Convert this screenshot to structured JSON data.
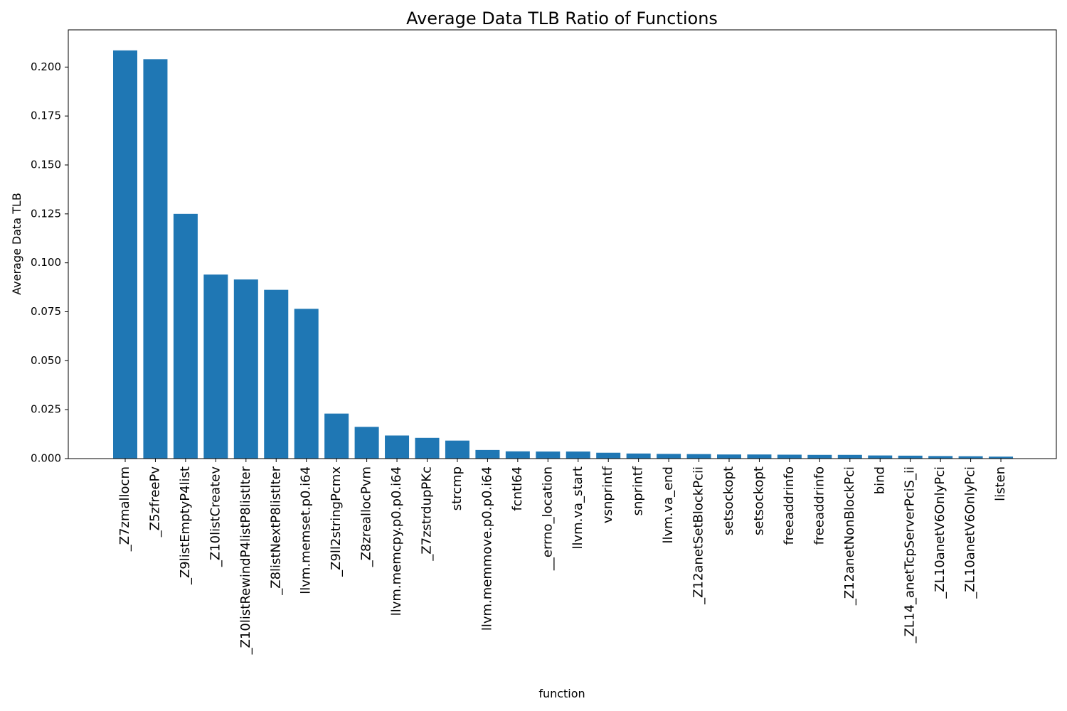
{
  "chart_data": {
    "type": "bar",
    "title": "Average Data TLB Ratio of Functions",
    "xlabel": "function",
    "ylabel": "Average Data TLB",
    "ylim": [
      0,
      0.219
    ],
    "yticks": [
      0.0,
      0.025,
      0.05,
      0.075,
      0.1,
      0.125,
      0.15,
      0.175,
      0.2
    ],
    "ytick_labels": [
      "0.000",
      "0.025",
      "0.050",
      "0.075",
      "0.100",
      "0.125",
      "0.150",
      "0.175",
      "0.200"
    ],
    "grid": false,
    "bar_color": "#1f77b4",
    "categories": [
      "_Z7zmallocm",
      "_Z5zfreePv",
      "_Z9listEmptyP4list",
      "_Z10listCreatev",
      "_Z10listRewindP4listP8listIter",
      "_Z8listNextP8listIter",
      "llvm.memset.p0.i64",
      "_Z9ll2stringPcmx",
      "_Z8zreallocPvm",
      "llvm.memcpy.p0.p0.i64",
      "_Z7zstrdupPKc",
      "strcmp",
      "llvm.memmove.p0.p0.i64",
      "fcntl64",
      "__errno_location",
      "llvm.va_start",
      "vsnprintf",
      "snprintf",
      "llvm.va_end",
      "_Z12anetSetBlockPcii",
      "setsockopt",
      "setsockopt",
      "freeaddrinfo",
      "freeaddrinfo",
      "_Z12anetNonBlockPci",
      "bind",
      "_ZL14_anetTcpServerPciS_ii",
      "_ZL10anetV6OnlyPci",
      "_ZL10anetV6OnlyPci",
      "listen"
    ],
    "values": [
      0.2085,
      0.204,
      0.125,
      0.094,
      0.0915,
      0.0862,
      0.0765,
      0.023,
      0.0162,
      0.0118,
      0.0106,
      0.0092,
      0.0044,
      0.0037,
      0.0036,
      0.0036,
      0.003,
      0.0026,
      0.0024,
      0.0023,
      0.0021,
      0.0021,
      0.002,
      0.0019,
      0.0019,
      0.0016,
      0.0015,
      0.0013,
      0.0012,
      0.001
    ]
  }
}
